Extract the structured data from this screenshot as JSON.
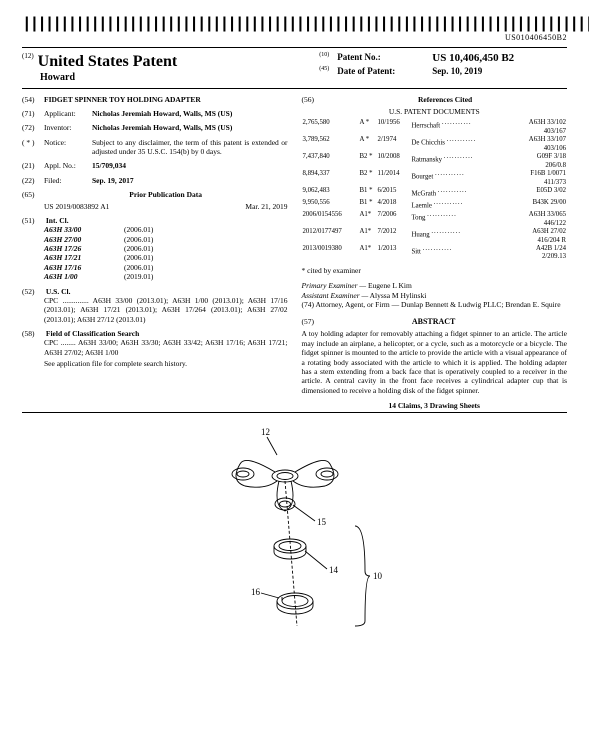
{
  "barcode_text": "||||||||||||||||||||||||||||||||||||||||||||||||||||||||||||||||||||||||||||||",
  "doc_number": "US010406450B2",
  "header": {
    "code12": "(12)",
    "title": "United States Patent",
    "author": "Howard",
    "code10": "(10)",
    "pno_label": "Patent No.:",
    "pno_value": "US 10,406,450 B2",
    "code45": "(45)",
    "dop_label": "Date of Patent:",
    "dop_value": "Sep. 10, 2019"
  },
  "title_field": {
    "num": "(54)",
    "value": "FIDGET SPINNER TOY HOLDING ADAPTER"
  },
  "applicant": {
    "num": "(71)",
    "label": "Applicant:",
    "value": "Nicholas Jeremiah Howard, Walls, MS (US)"
  },
  "inventor": {
    "num": "(72)",
    "label": "Inventor:",
    "value": "Nicholas Jeremiah Howard, Walls, MS (US)"
  },
  "notice": {
    "num": "( * )",
    "label": "Notice:",
    "value": "Subject to any disclaimer, the term of this patent is extended or adjusted under 35 U.S.C. 154(b) by 0 days."
  },
  "applno": {
    "num": "(21)",
    "label": "Appl. No.:",
    "value": "15/709,034"
  },
  "filed": {
    "num": "(22)",
    "label": "Filed:",
    "value": "Sep. 19, 2017"
  },
  "prior_pub": {
    "num": "(65)",
    "heading": "Prior Publication Data",
    "pub": "US 2019/0083892 A1",
    "date": "Mar. 21, 2019"
  },
  "intcl": {
    "num": "(51)",
    "label": "Int. Cl.",
    "rows": [
      {
        "c": "A63H 33/00",
        "y": "(2006.01)"
      },
      {
        "c": "A63H 27/00",
        "y": "(2006.01)"
      },
      {
        "c": "A63H 17/26",
        "y": "(2006.01)"
      },
      {
        "c": "A63H 17/21",
        "y": "(2006.01)"
      },
      {
        "c": "A63H 17/16",
        "y": "(2006.01)"
      },
      {
        "c": "A63H 1/00",
        "y": "(2019.01)"
      }
    ]
  },
  "uscl": {
    "num": "(52)",
    "label": "U.S. Cl.",
    "cpc": "CPC .............. A63H 33/00 (2013.01); A63H 1/00 (2013.01); A63H 17/16 (2013.01); A63H 17/21 (2013.01); A63H 17/264 (2013.01); A63H 27/02 (2013.01); A63H 27/12 (2013.01)"
  },
  "fosearch": {
    "num": "(58)",
    "label": "Field of Classification Search",
    "cpc": "CPC ........ A63H 33/00; A63H 33/30; A63H 33/42; A63H 17/16; A63H 17/21; A63H 27/02; A63H 1/00",
    "note": "See application file for complete search history."
  },
  "refs": {
    "num": "(56)",
    "heading": "References Cited",
    "subheading": "U.S. PATENT DOCUMENTS",
    "rows": [
      {
        "pn": "2,765,580",
        "kd": "A *",
        "dt": "10/1956",
        "nm": "Herrschaft",
        "cl": "A63H 33/102",
        "cl2": "403/167"
      },
      {
        "pn": "3,789,562",
        "kd": "A *",
        "dt": "2/1974",
        "nm": "De Chicchis",
        "cl": "A63H 33/107",
        "cl2": "403/106"
      },
      {
        "pn": "7,437,840",
        "kd": "B2 *",
        "dt": "10/2008",
        "nm": "Ratmansky",
        "cl": "G09F 3/18",
        "cl2": "206/0.8"
      },
      {
        "pn": "8,894,337",
        "kd": "B2 *",
        "dt": "11/2014",
        "nm": "Bourget",
        "cl": "F16B 1/0071",
        "cl2": "411/373"
      },
      {
        "pn": "9,062,483",
        "kd": "B1 *",
        "dt": "6/2015",
        "nm": "McGrath",
        "cl": "E05D 3/02",
        "cl2": ""
      },
      {
        "pn": "9,950,556",
        "kd": "B1 *",
        "dt": "4/2018",
        "nm": "Laemle",
        "cl": "B43K 29/00",
        "cl2": ""
      },
      {
        "pn": "2006/0154556",
        "kd": "A1*",
        "dt": "7/2006",
        "nm": "Tong",
        "cl": "A63H 33/065",
        "cl2": "446/122"
      },
      {
        "pn": "2012/0177497",
        "kd": "A1*",
        "dt": "7/2012",
        "nm": "Huang",
        "cl": "A63H 27/02",
        "cl2": "416/204 R"
      },
      {
        "pn": "2013/0019380",
        "kd": "A1*",
        "dt": "1/2013",
        "nm": "Sitt",
        "cl": "A42B 1/24",
        "cl2": "2/209.13"
      }
    ],
    "cited": "* cited by examiner"
  },
  "examiners": {
    "primary_l": "Primary Examiner —",
    "primary_v": "Eugene L Kim",
    "assist_l": "Assistant Examiner —",
    "assist_v": "Alyssa M Hylinski",
    "attorney_l": "(74)  Attorney, Agent, or Firm —",
    "attorney_v": "Dunlap Bennett & Ludwig PLLC; Brendan E. Squire"
  },
  "abstract": {
    "num": "(57)",
    "heading": "ABSTRACT",
    "text": "A toy holding adapter for removably attaching a fidget spinner to an article. The article may include an airplane, a helicopter, or a cycle, such as a motorcycle or a bicycle. The fidget spinner is mounted to the article to provide the article with a visual appearance of a rotating body associated with the article to which it is applied. The holding adapter has a stem extending from a back face that is operatively coupled to a receiver in the article. A central cavity in the front face receives a cylindrical adapter cup that is dimensioned to receive a holding disk of the fidget spinner.",
    "claims": "14 Claims, 3 Drawing Sheets"
  },
  "figure": {
    "labels": {
      "a": "12",
      "b": "15",
      "c": "14",
      "d": "16",
      "e": "10"
    },
    "stroke": "#000",
    "linewidth": 0.9
  }
}
